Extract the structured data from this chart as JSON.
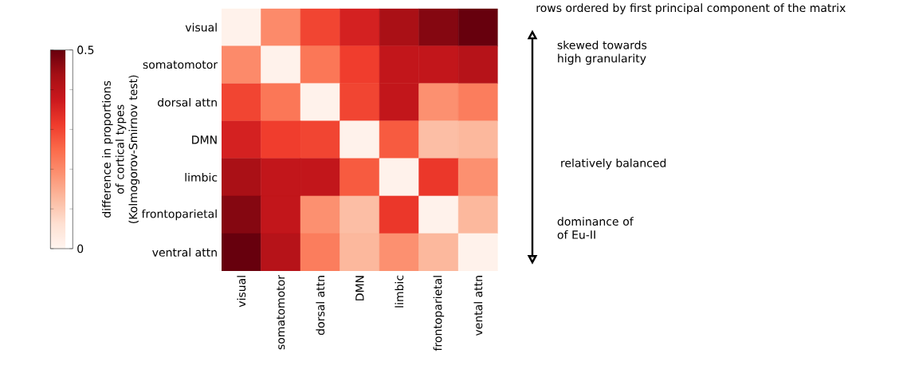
{
  "chart_data": {
    "type": "heatmap",
    "categories": [
      "visual",
      "somatomotor",
      "dorsal attn",
      "DMN",
      "limbic",
      "frontoparietal",
      "vental attn"
    ],
    "y_categories": [
      "visual",
      "somatomotor",
      "dorsal attn",
      "DMN",
      "limbic",
      "frontoparietal",
      "ventral attn"
    ],
    "cells": [
      [
        0.01,
        0.2,
        0.3,
        0.36,
        0.43,
        0.47,
        0.5
      ],
      [
        0.2,
        0.01,
        0.23,
        0.31,
        0.39,
        0.39,
        0.41
      ],
      [
        0.3,
        0.23,
        0.01,
        0.3,
        0.39,
        0.19,
        0.22
      ],
      [
        0.36,
        0.31,
        0.3,
        0.01,
        0.27,
        0.12,
        0.13
      ],
      [
        0.43,
        0.39,
        0.39,
        0.27,
        0.01,
        0.32,
        0.19
      ],
      [
        0.47,
        0.39,
        0.19,
        0.12,
        0.32,
        0.01,
        0.13
      ],
      [
        0.5,
        0.41,
        0.22,
        0.13,
        0.19,
        0.13,
        0.01
      ]
    ],
    "clabel": "difference in proportions of cortical types (Kolmogorov-Smirnov test)",
    "clim": [
      0,
      0.5
    ],
    "cticks": [
      0,
      {
        "value": 0.1,
        "label": null
      },
      {
        "value": 0.2,
        "label": null
      },
      {
        "value": 0.3,
        "label": null
      },
      {
        "value": 0.4,
        "label": null
      },
      0.5
    ],
    "annotations": [
      "rows ordered by first principal component of the matrix",
      "skewed towards high granularity",
      "relatively balanced",
      "dominance of of Eu-II"
    ]
  }
}
